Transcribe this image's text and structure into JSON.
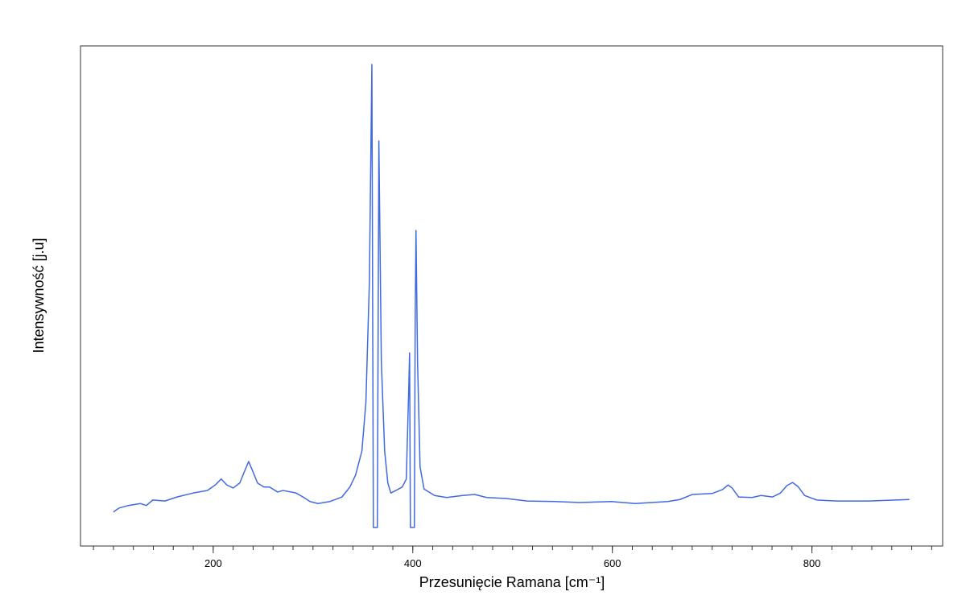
{
  "chart_data": {
    "type": "line",
    "xlabel": "Przesunięcie Ramana [cm⁻¹]",
    "ylabel": "Intensywność [j.u]",
    "color": "#4169e1",
    "xlim": [
      67,
      931
    ],
    "ylim": [
      0,
      100
    ],
    "xticks": [
      200,
      400,
      600,
      800
    ],
    "xminorticks": [
      80,
      100,
      120,
      140,
      160,
      180,
      200,
      220,
      240,
      260,
      280,
      300,
      320,
      340,
      360,
      380,
      400,
      420,
      440,
      460,
      480,
      500,
      520,
      540,
      560,
      580,
      600,
      620,
      640,
      660,
      680,
      700,
      720,
      740,
      760,
      780,
      800,
      820,
      840,
      860,
      880,
      900,
      920
    ],
    "x": [
      100,
      105.6,
      115,
      127,
      133,
      139.5,
      151.6,
      163.7,
      180,
      194,
      202,
      208,
      213.7,
      220,
      226.6,
      231.5,
      235.5,
      239.5,
      244.4,
      250.8,
      256.5,
      264.5,
      270,
      283,
      290,
      297,
      305,
      317,
      329,
      337,
      342.7,
      349,
      353,
      356.5,
      359,
      360.5,
      364.5,
      365.3,
      366,
      368.5,
      371.8,
      375,
      378,
      383,
      389.5,
      393.5,
      396,
      396.8,
      397.6,
      401.6,
      402.4,
      403.2,
      404.8,
      407.3,
      411.3,
      421.8,
      433.9,
      450,
      462,
      474,
      494,
      514.5,
      542.7,
      567,
      599,
      623,
      655.6,
      667.7,
      680,
      700,
      710.5,
      716,
      720,
      726.6,
      740,
      749,
      760.5,
      768.5,
      775,
      780.6,
      786,
      792.7,
      804.8,
      825,
      857,
      897.6
    ],
    "values": [
      6.8,
      7.6,
      8.1,
      8.5,
      8.1,
      9.2,
      9.0,
      9.8,
      10.6,
      11.1,
      12.2,
      13.4,
      12.2,
      11.6,
      12.6,
      15.0,
      16.9,
      15.0,
      12.6,
      11.8,
      11.8,
      10.8,
      11.1,
      10.6,
      9.8,
      8.9,
      8.5,
      8.9,
      9.8,
      11.8,
      14.2,
      19.0,
      28.7,
      52.8,
      96.3,
      3.7,
      3.7,
      44.8,
      81,
      36.7,
      19.0,
      12.6,
      10.6,
      11.1,
      11.8,
      13.4,
      31.9,
      38.6,
      3.7,
      3.7,
      44.8,
      63.1,
      36.7,
      15.8,
      11.4,
      10.1,
      9.7,
      10.1,
      10.3,
      9.7,
      9.5,
      9.0,
      8.9,
      8.7,
      8.9,
      8.5,
      8.9,
      9.3,
      10.3,
      10.5,
      11.3,
      12.2,
      11.6,
      9.8,
      9.7,
      10.1,
      9.8,
      10.6,
      12.1,
      12.7,
      11.9,
      10.1,
      9.2,
      9.0,
      9.0,
      9.3
    ]
  }
}
